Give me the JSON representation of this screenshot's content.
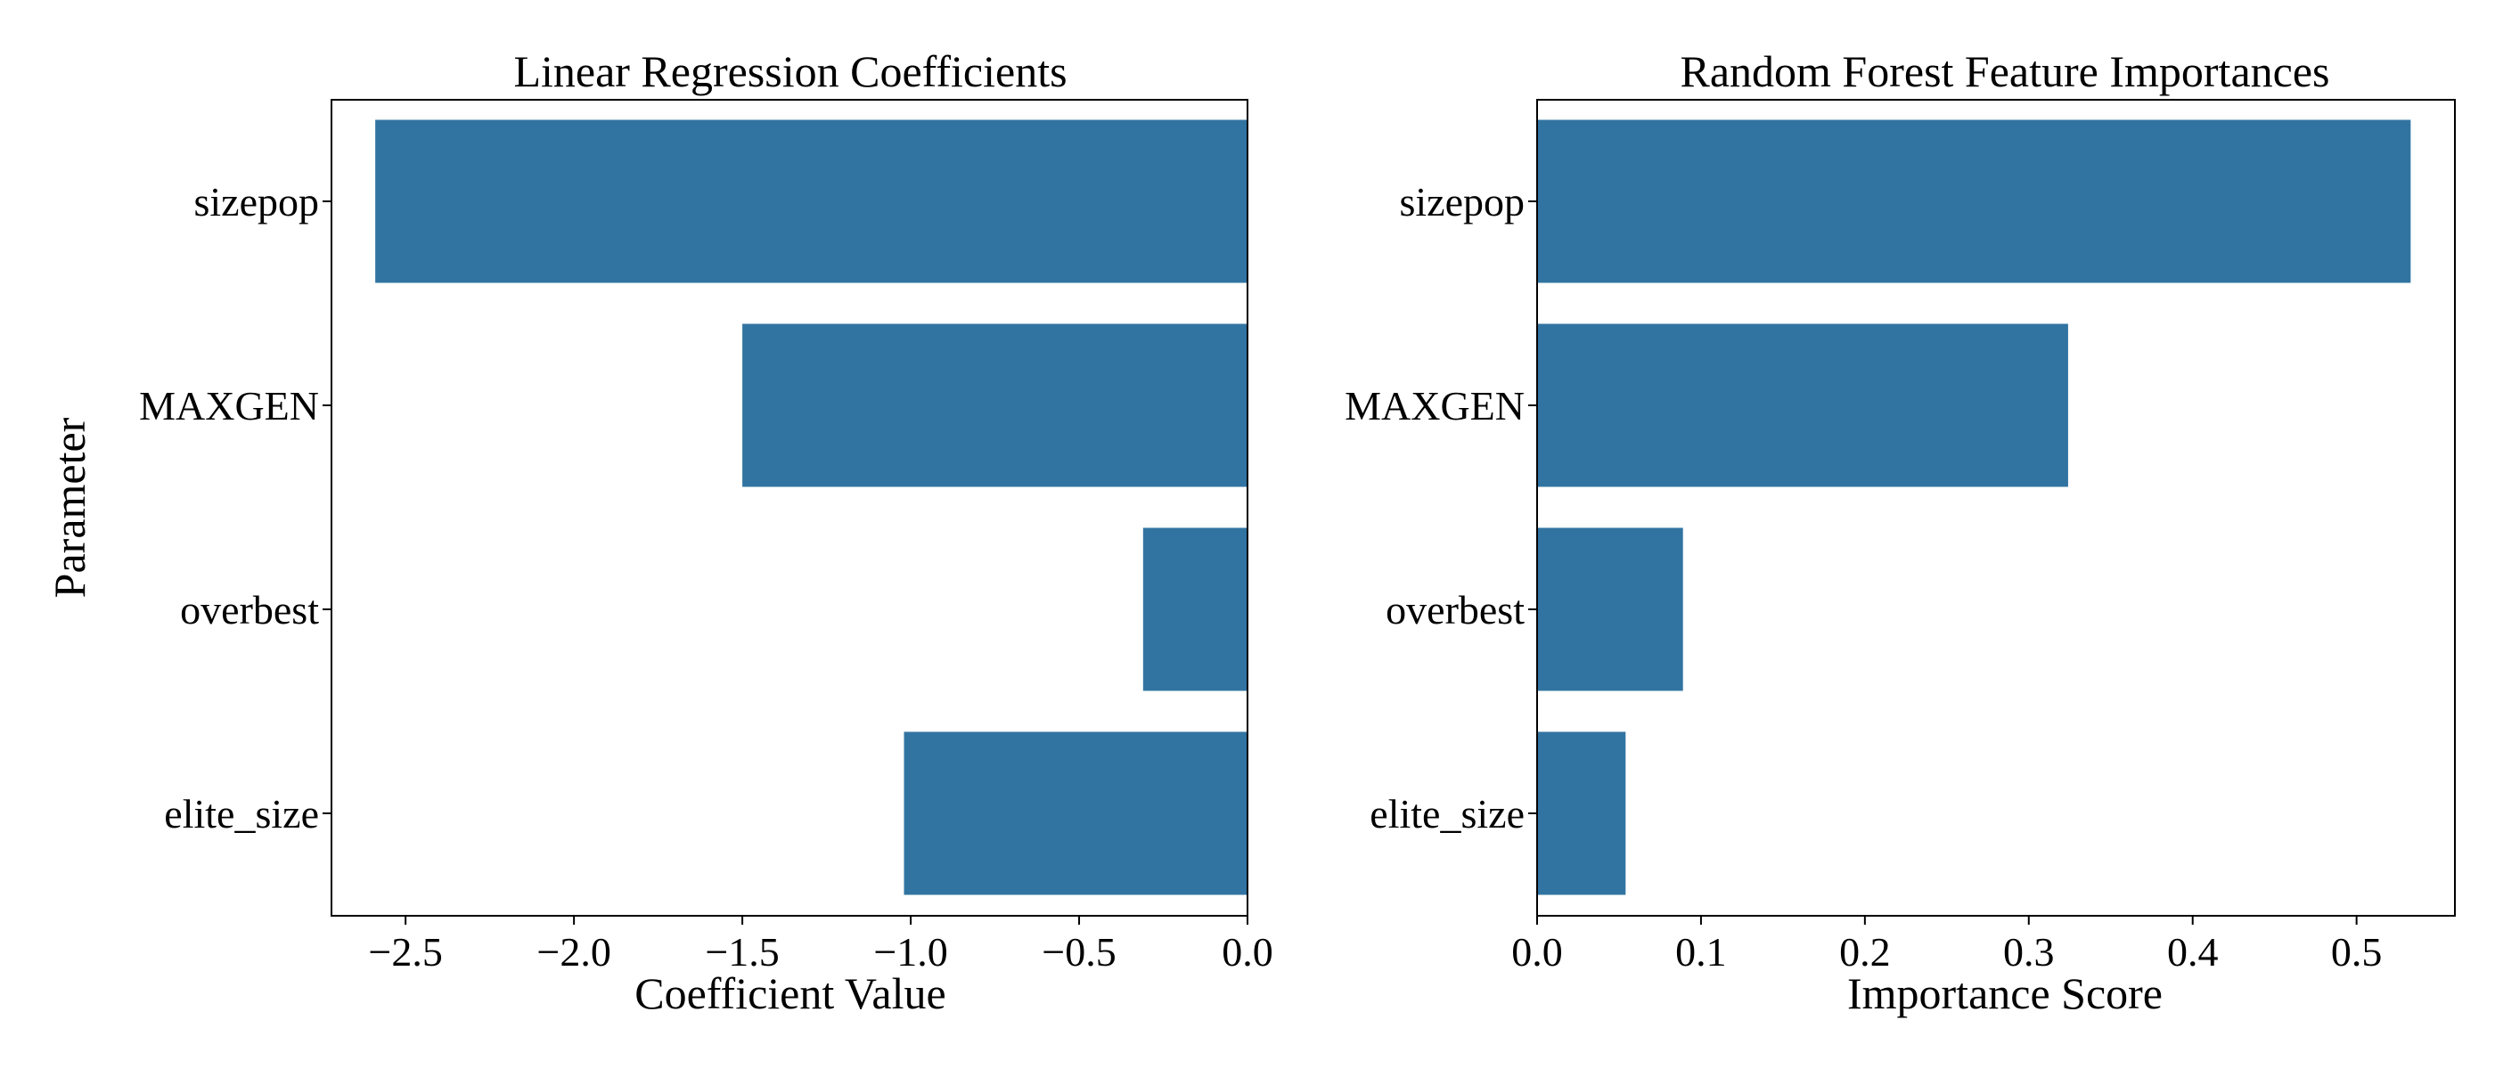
{
  "chart_data": [
    {
      "type": "bar",
      "orientation": "horizontal",
      "title": "Linear Regression Coefficients",
      "xlabel": "Coefficient Value",
      "ylabel": "Parameter",
      "categories": [
        "sizepop",
        "MAXGEN",
        "overbest",
        "elite_size"
      ],
      "values": [
        -2.59,
        -1.5,
        -0.31,
        -1.02
      ],
      "xlim": [
        -2.72,
        0.0
      ],
      "xticks": [
        -2.5,
        -2.0,
        -1.5,
        -1.0,
        -0.5,
        0.0
      ],
      "xtick_labels": [
        "−2.5",
        "−2.0",
        "−1.5",
        "−1.0",
        "−0.5",
        "0.0"
      ],
      "color": "#3274a1",
      "grid": false,
      "legend": false
    },
    {
      "type": "bar",
      "orientation": "horizontal",
      "title": "Random Forest Feature Importances",
      "xlabel": "Importance Score",
      "ylabel": "",
      "categories": [
        "sizepop",
        "MAXGEN",
        "overbest",
        "elite_size"
      ],
      "values": [
        0.533,
        0.324,
        0.089,
        0.054
      ],
      "xlim": [
        0.0,
        0.56
      ],
      "xticks": [
        0.0,
        0.1,
        0.2,
        0.3,
        0.4,
        0.5
      ],
      "xtick_labels": [
        "0.0",
        "0.1",
        "0.2",
        "0.3",
        "0.4",
        "0.5"
      ],
      "color": "#3274a1",
      "grid": false,
      "legend": false
    }
  ]
}
